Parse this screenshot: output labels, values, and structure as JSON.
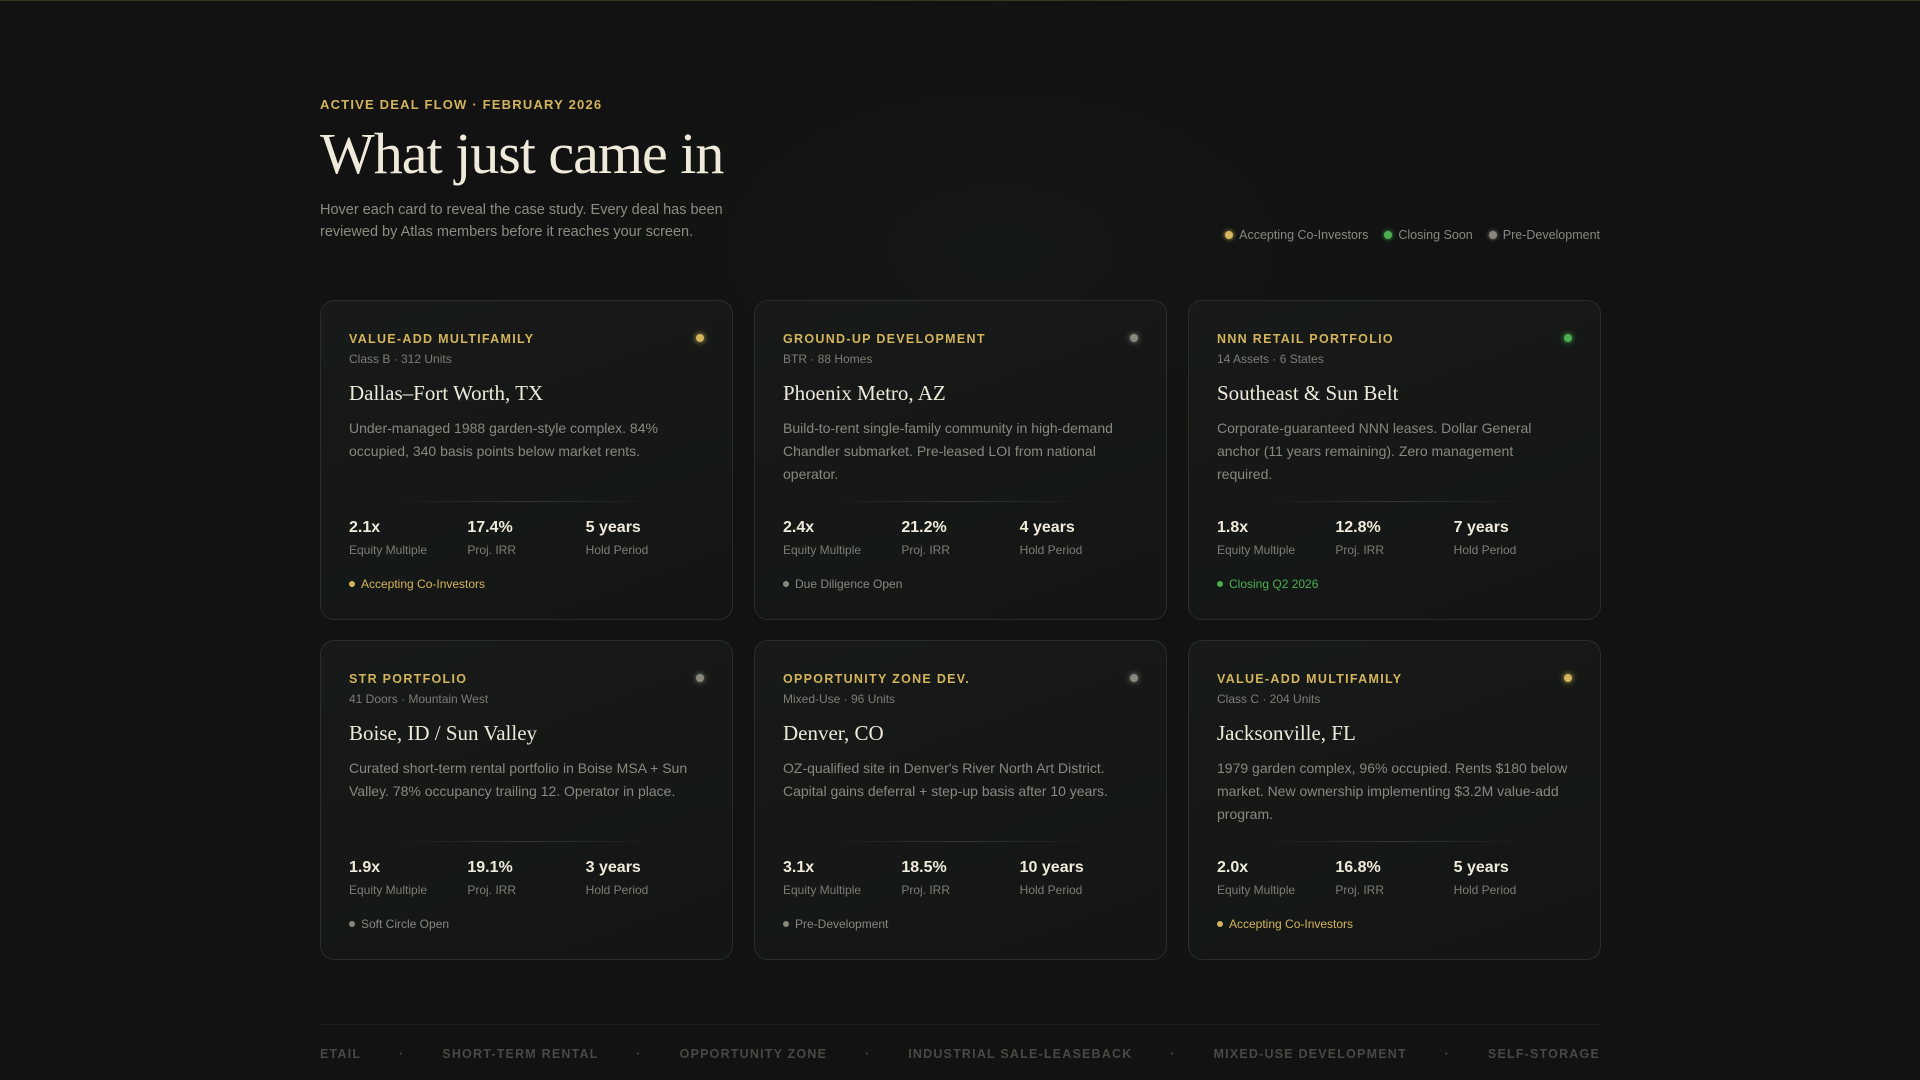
{
  "header": {
    "eyebrow": "ACTIVE DEAL FLOW · FEBRUARY 2026",
    "title": "What just came in",
    "subtitle": "Hover each card to reveal the case study. Every deal has been reviewed by Atlas members before it reaches your screen."
  },
  "colors": {
    "gold": "#d4b45c",
    "green": "#4caf50",
    "gray": "#8a877f"
  },
  "legend": [
    {
      "label": "Accepting Co-Investors",
      "color": "#d4b45c"
    },
    {
      "label": "Closing Soon",
      "color": "#4caf50"
    },
    {
      "label": "Pre-Development",
      "color": "#8a877f"
    }
  ],
  "metric_labels": [
    "Equity Multiple",
    "Proj. IRR",
    "Hold Period"
  ],
  "cards": [
    {
      "category": "VALUE-ADD MULTIFAMILY",
      "meta": "Class B · 312 Units",
      "city": "Dallas–Fort Worth, TX",
      "desc": "Under-managed 1988 garden-style complex. 84% occupied, 340 basis points below market rents.",
      "metrics": [
        "2.1x",
        "17.4%",
        "5 years"
      ],
      "status": "Accepting Co-Investors",
      "color": "#d4b45c",
      "status_color": "#d4b45c"
    },
    {
      "category": "GROUND-UP DEVELOPMENT",
      "meta": "BTR · 88 Homes",
      "city": "Phoenix Metro, AZ",
      "desc": "Build-to-rent single-family community in high-demand Chandler submarket. Pre-leased LOI from national operator.",
      "metrics": [
        "2.4x",
        "21.2%",
        "4 years"
      ],
      "status": "Due Diligence Open",
      "color": "#8a877f",
      "status_color": "#8a877f"
    },
    {
      "category": "NNN RETAIL PORTFOLIO",
      "meta": "14 Assets · 6 States",
      "city": "Southeast & Sun Belt",
      "desc": "Corporate-guaranteed NNN leases. Dollar General anchor (11 years remaining). Zero management required.",
      "metrics": [
        "1.8x",
        "12.8%",
        "7 years"
      ],
      "status": "Closing Q2 2026",
      "color": "#4caf50",
      "status_color": "#4caf50"
    },
    {
      "category": "STR PORTFOLIO",
      "meta": "41 Doors · Mountain West",
      "city": "Boise, ID / Sun Valley",
      "desc": "Curated short-term rental portfolio in Boise MSA + Sun Valley. 78% occupancy trailing 12. Operator in place.",
      "metrics": [
        "1.9x",
        "19.1%",
        "3 years"
      ],
      "status": "Soft Circle Open",
      "color": "#8a877f",
      "status_color": "#8a877f"
    },
    {
      "category": "OPPORTUNITY ZONE DEV.",
      "meta": "Mixed-Use · 96 Units",
      "city": "Denver, CO",
      "desc": "OZ-qualified site in Denver's River North Art District. Capital gains deferral + step-up basis after 10 years.",
      "metrics": [
        "3.1x",
        "18.5%",
        "10 years"
      ],
      "status": "Pre-Development",
      "color": "#8a877f",
      "status_color": "#8a877f"
    },
    {
      "category": "VALUE-ADD MULTIFAMILY",
      "meta": "Class C · 204 Units",
      "city": "Jacksonville, FL",
      "desc": "1979 garden complex, 96% occupied. Rents $180 below market. New ownership implementing $3.2M value-add program.",
      "metrics": [
        "2.0x",
        "16.8%",
        "5 years"
      ],
      "status": "Accepting Co-Investors",
      "color": "#d4b45c",
      "status_color": "#d4b45c"
    }
  ],
  "ticker": [
    "ETAIL",
    "·",
    "SHORT-TERM RENTAL",
    "·",
    "OPPORTUNITY ZONE",
    "·",
    "INDUSTRIAL SALE-LEASEBACK",
    "·",
    "MIXED-USE DEVELOPMENT",
    "·",
    "SELF-STORAGE"
  ]
}
